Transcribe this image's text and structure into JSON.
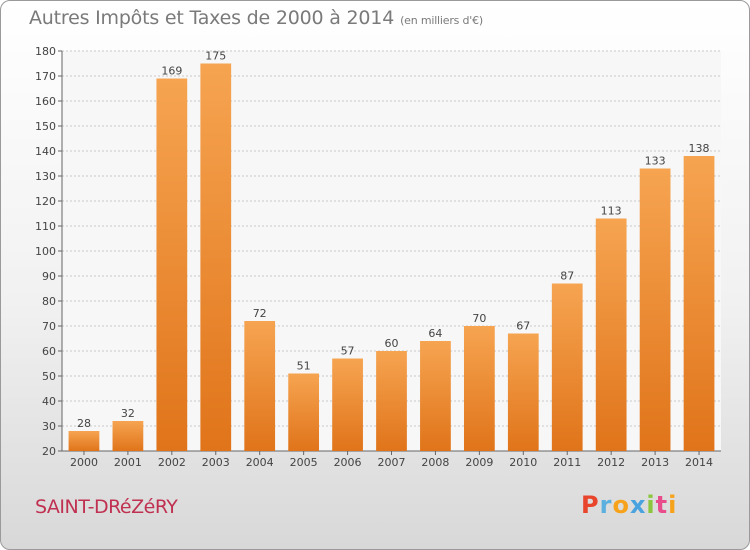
{
  "header": {
    "title": "Autres Impôts et Taxes de 2000 à 2014",
    "subtitle": "(en milliers d'€)"
  },
  "footer": {
    "town": "SAINT-DRéZéRY",
    "brand": "Proxiti",
    "brand_colors": [
      "#e8452c",
      "#5bb0e0",
      "#f7a21b",
      "#4aa3df",
      "#8cc63f",
      "#e84c8b",
      "#f7a21b"
    ]
  },
  "chart_data": {
    "type": "bar",
    "title": "Autres Impôts et Taxes de 2000 à 2014",
    "subtitle": "(en milliers d'€)",
    "categories": [
      "2000",
      "2001",
      "2002",
      "2003",
      "2004",
      "2005",
      "2006",
      "2007",
      "2008",
      "2009",
      "2010",
      "2011",
      "2012",
      "2013",
      "2014"
    ],
    "values": [
      28,
      32,
      169,
      175,
      72,
      51,
      57,
      60,
      64,
      70,
      67,
      87,
      113,
      133,
      138
    ],
    "ylim": [
      20,
      180
    ],
    "yticks": [
      20,
      30,
      40,
      50,
      60,
      70,
      80,
      90,
      100,
      110,
      120,
      130,
      140,
      150,
      160,
      170,
      180
    ],
    "grid": true,
    "bar_color": "#f28e2b",
    "bar_color_light": "#f6a451",
    "bar_color_dark": "#e0741a"
  }
}
